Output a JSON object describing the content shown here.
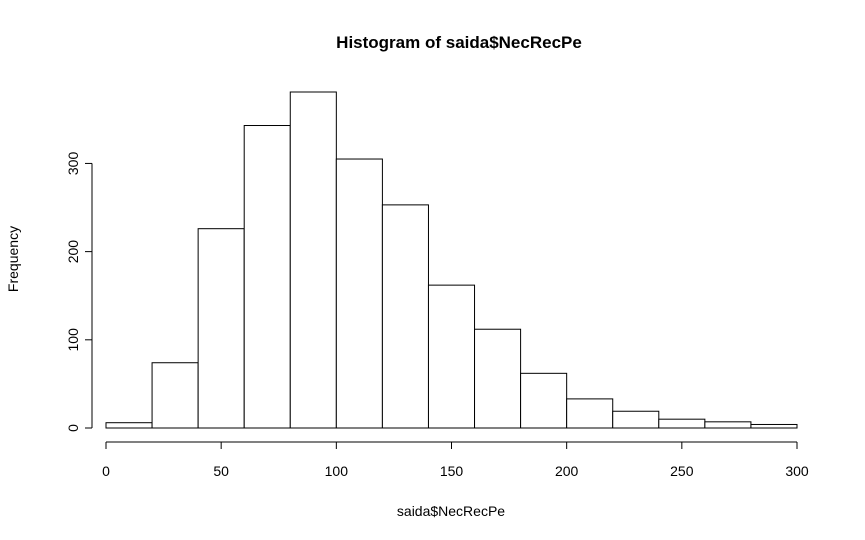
{
  "chart_data": {
    "type": "bar",
    "title": "Histogram of saida$NecRecPe",
    "xlabel": "saida$NecRecPe",
    "ylabel": "Frequency",
    "bins": [
      {
        "from": 0,
        "to": 20,
        "count": 6
      },
      {
        "from": 20,
        "to": 40,
        "count": 74
      },
      {
        "from": 40,
        "to": 60,
        "count": 226
      },
      {
        "from": 60,
        "to": 80,
        "count": 343
      },
      {
        "from": 80,
        "to": 100,
        "count": 381
      },
      {
        "from": 100,
        "to": 120,
        "count": 305
      },
      {
        "from": 120,
        "to": 140,
        "count": 253
      },
      {
        "from": 140,
        "to": 160,
        "count": 162
      },
      {
        "from": 160,
        "to": 180,
        "count": 112
      },
      {
        "from": 180,
        "to": 200,
        "count": 62
      },
      {
        "from": 200,
        "to": 220,
        "count": 33
      },
      {
        "from": 220,
        "to": 240,
        "count": 19
      },
      {
        "from": 240,
        "to": 260,
        "count": 10
      },
      {
        "from": 260,
        "to": 280,
        "count": 7
      },
      {
        "from": 280,
        "to": 300,
        "count": 4
      }
    ],
    "xlim": [
      0,
      300
    ],
    "ylim": [
      0,
      381
    ],
    "x_ticks": [
      0,
      50,
      100,
      150,
      200,
      250,
      300
    ],
    "y_ticks": [
      0,
      100,
      200,
      300
    ],
    "grid": false,
    "legend": "none",
    "colors": {
      "bar_fill": "#ffffff",
      "bar_stroke": "#000000"
    }
  }
}
